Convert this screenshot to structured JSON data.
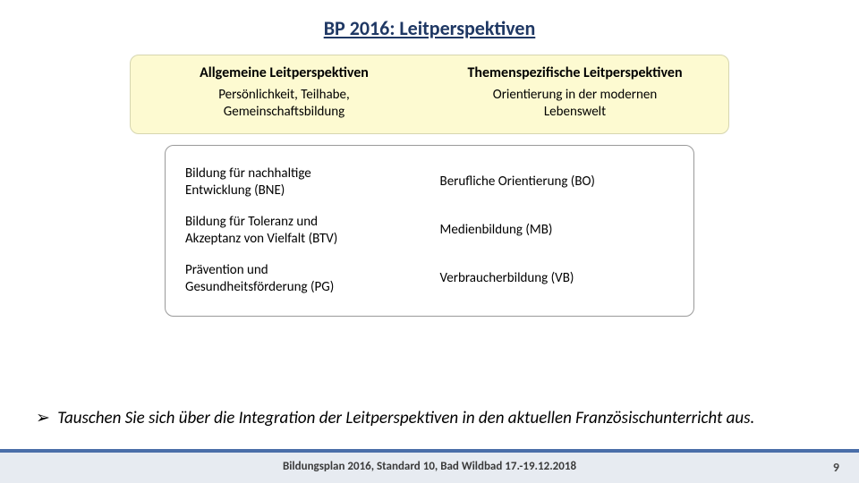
{
  "title": "BP 2016: Leitperspektiven",
  "yellow_box": {
    "background_color": "#fdfad1",
    "border_color": "#d6d6b0",
    "left": {
      "header": "Allgemeine Leitperspektiven",
      "sub_line1": "Persönlichkeit, Teilhabe,",
      "sub_line2": "Gemeinschaftsbildung"
    },
    "right": {
      "header": "Themenspezifische Leitperspektiven",
      "sub_line1": "Orientierung in der modernen",
      "sub_line2": "Lebenswelt"
    }
  },
  "lower_box": {
    "border_color": "#9a9a9a",
    "rows": [
      {
        "left_line1": "Bildung für nachhaltige",
        "left_line2": "Entwicklung (BNE)",
        "right": "Berufliche Orientierung (BO)"
      },
      {
        "left_line1": "Bildung für Toleranz und",
        "left_line2": "Akzeptanz von Vielfalt (BTV)",
        "right": "Medienbildung (MB)"
      },
      {
        "left_line1": "Prävention und",
        "left_line2": "Gesundheitsförderung (PG)",
        "right": "Verbraucherbildung (VB)"
      }
    ]
  },
  "task": {
    "arrow": "➢",
    "text": "Tauschen Sie sich über die Integration der Leitperspektiven in den aktuellen Französischunterricht aus."
  },
  "footer": {
    "bar_color": "#4a6ea9",
    "background_color": "#e7ebf1",
    "text": "Bildungsplan 2016, Standard 10, Bad Wildbad 17.-19.12.2018",
    "page": "9"
  },
  "colors": {
    "title_color": "#1f3864"
  }
}
